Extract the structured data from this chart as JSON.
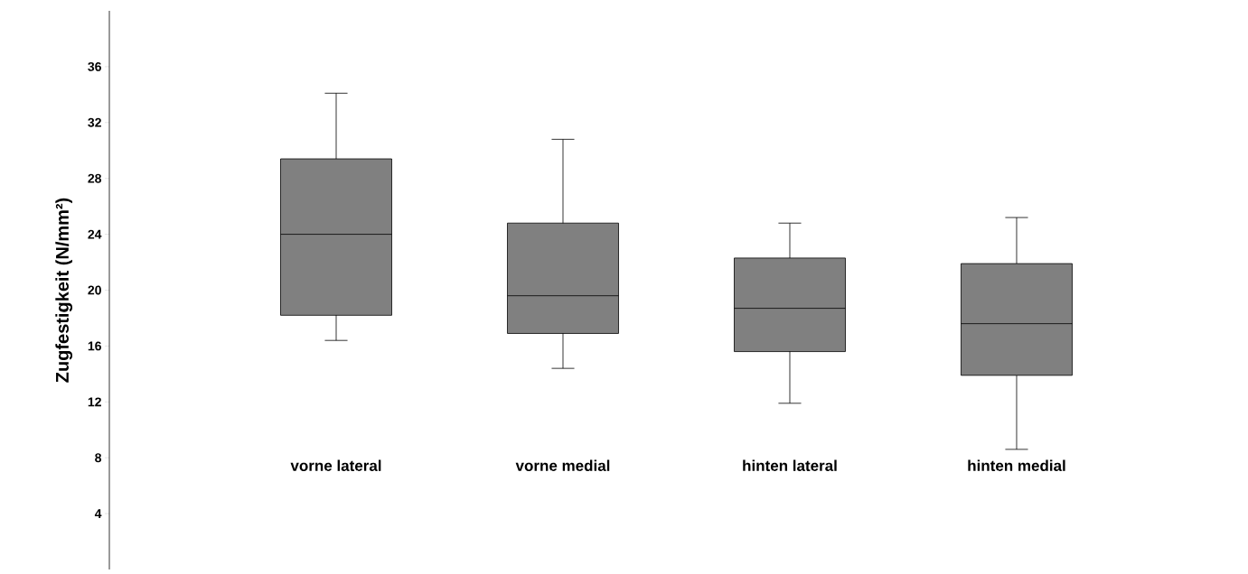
{
  "chart_data": {
    "type": "box",
    "ylabel": "Zugfestigkeit (N/mm²)",
    "categories": [
      "vorne lateral",
      "vorne medial",
      "hinten lateral",
      "hinten medial"
    ],
    "boxes": [
      {
        "low": 16.4,
        "q1": 18.2,
        "median": 24.0,
        "q3": 29.4,
        "high": 34.1
      },
      {
        "low": 14.4,
        "q1": 16.9,
        "median": 19.6,
        "q3": 24.8,
        "high": 30.8
      },
      {
        "low": 11.9,
        "q1": 15.6,
        "median": 18.7,
        "q3": 22.3,
        "high": 24.8
      },
      {
        "low": 8.6,
        "q1": 13.9,
        "median": 17.6,
        "q3": 21.9,
        "high": 25.2
      }
    ],
    "color": "#808080",
    "ylim": [
      0,
      40
    ],
    "yticks": [
      4,
      8,
      12,
      16,
      20,
      24,
      28,
      32,
      36
    ],
    "grid": false
  }
}
